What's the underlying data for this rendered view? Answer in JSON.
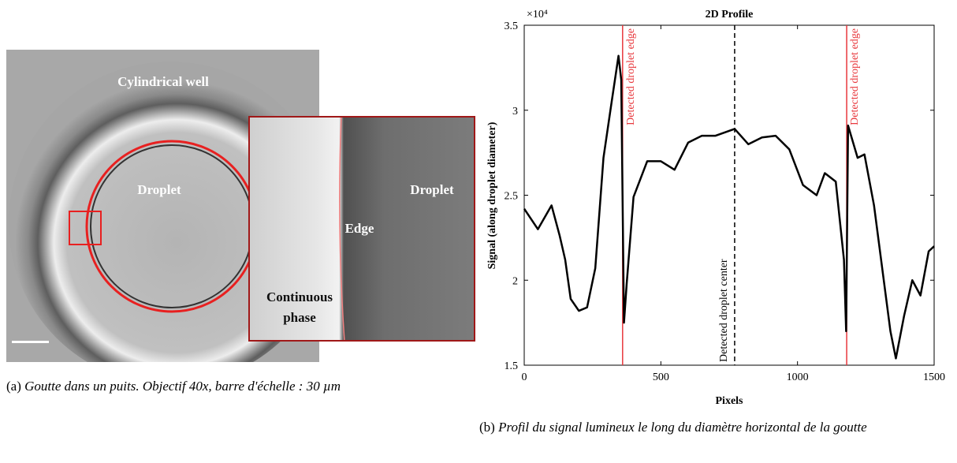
{
  "figure_a": {
    "labels": {
      "well": "Cylindrical well",
      "droplet": "Droplet",
      "inset_droplet": "Droplet",
      "edge": "Edge",
      "continuous": "Continuous phase"
    },
    "caption": {
      "tag": "(a)",
      "text": "Goutte dans un puits. Objectif 40x, barre d'échelle : 30 µm"
    }
  },
  "chart_data": {
    "type": "line",
    "title": "2D Profile",
    "xlabel": "Pixels",
    "ylabel": "Signal (along droplet diameter)",
    "y_multiplier": "×10⁴",
    "xlim": [
      0,
      1500
    ],
    "ylim": [
      15000,
      35000
    ],
    "xticks": [
      0,
      500,
      1000,
      1500
    ],
    "yticks": [
      {
        "value": 15000,
        "label": "1.5"
      },
      {
        "value": 20000,
        "label": "2"
      },
      {
        "value": 25000,
        "label": "2.5"
      },
      {
        "value": 30000,
        "label": "3"
      },
      {
        "value": 35000,
        "label": "3.5"
      }
    ],
    "series": [
      {
        "color": "#000000",
        "x": [
          0,
          50,
          100,
          130,
          150,
          170,
          200,
          230,
          260,
          290,
          320,
          345,
          355,
          365,
          375,
          400,
          450,
          500,
          550,
          600,
          650,
          700,
          770,
          820,
          870,
          920,
          970,
          1020,
          1070,
          1100,
          1140,
          1170,
          1178,
          1185,
          1220,
          1245,
          1280,
          1310,
          1340,
          1360,
          1390,
          1420,
          1450,
          1480,
          1500
        ],
        "values": [
          24200,
          23000,
          24400,
          22600,
          21200,
          18900,
          18200,
          18400,
          20700,
          27200,
          30500,
          33200,
          31800,
          17500,
          19800,
          24900,
          27000,
          27000,
          26500,
          28100,
          28500,
          28500,
          28900,
          28000,
          28400,
          28500,
          27700,
          25600,
          25000,
          26300,
          25800,
          21200,
          17000,
          29100,
          27200,
          27400,
          24400,
          20700,
          17000,
          15400,
          17900,
          20000,
          19100,
          21700,
          22000
        ]
      }
    ],
    "vlines": [
      {
        "x": 360,
        "color": "#e8383d",
        "style": "solid",
        "label": "Detected droplet edge"
      },
      {
        "x": 770,
        "color": "#000000",
        "style": "dashed",
        "label": "Detected droplet center"
      },
      {
        "x": 1180,
        "color": "#e8383d",
        "style": "solid",
        "label": "Detected droplet edge"
      }
    ]
  },
  "caption_b": {
    "tag": "(b)",
    "text": "Profil du signal lumineux le long du diamètre horizontal de la goutte"
  }
}
